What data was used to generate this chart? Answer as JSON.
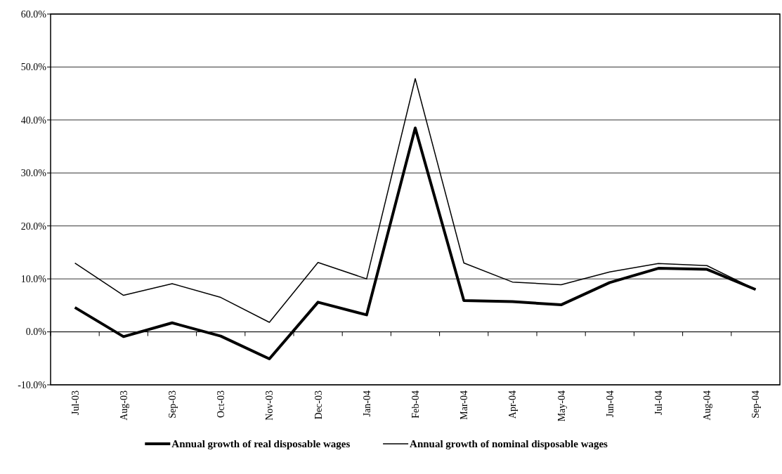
{
  "chart_data": {
    "type": "line",
    "categories": [
      "Jul-03",
      "Aug-03",
      "Sep-03",
      "Oct-03",
      "Nov-03",
      "Dec-03",
      "Jan-04",
      "Feb-04",
      "Mar-04",
      "Apr-04",
      "May-04",
      "Jun-04",
      "Jul-04",
      "Aug-04",
      "Sep-04"
    ],
    "series": [
      {
        "name": "Annual growth of real disposable wages",
        "color": "#000000",
        "values": [
          4.6,
          -0.9,
          1.7,
          -0.8,
          -5.1,
          5.6,
          3.2,
          38.5,
          5.9,
          5.7,
          5.1,
          9.3,
          12.0,
          11.8,
          8.0
        ]
      },
      {
        "name": "Annual growth of nominal disposable wages",
        "color": "#000000",
        "values": [
          13.0,
          6.9,
          9.1,
          6.5,
          1.8,
          13.1,
          10.0,
          47.8,
          13.0,
          9.4,
          8.9,
          11.3,
          12.9,
          12.5,
          8.0
        ]
      }
    ],
    "ylim": [
      -10,
      60
    ],
    "yticks": [
      {
        "value": -10,
        "label": "-10.0%"
      },
      {
        "value": 0,
        "label": "0.0%"
      },
      {
        "value": 10,
        "label": "10.0%"
      },
      {
        "value": 20,
        "label": "20.0%"
      },
      {
        "value": 30,
        "label": "30.0%"
      },
      {
        "value": 40,
        "label": "40.0%"
      },
      {
        "value": 50,
        "label": "50.0%"
      },
      {
        "value": 60,
        "label": "60.0%"
      }
    ],
    "grid": "y",
    "legend": "bottom",
    "marker": "none",
    "line_style": "solid"
  }
}
